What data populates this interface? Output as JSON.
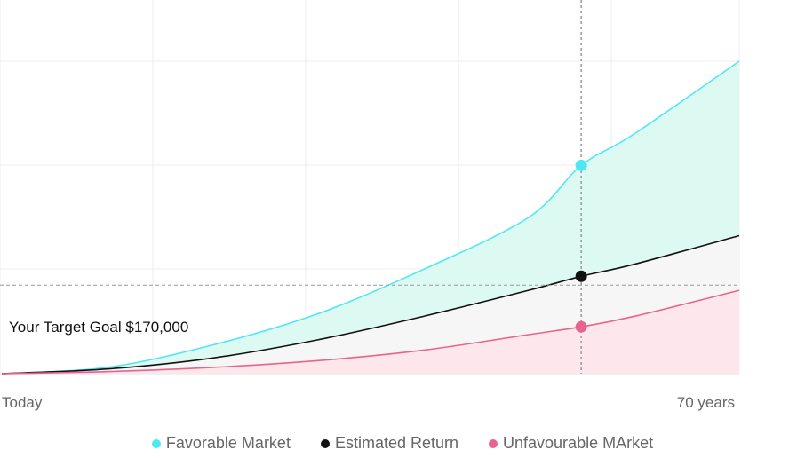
{
  "chart_data": {
    "type": "area",
    "x_start_label": "Today",
    "x_end_label": "70 years",
    "xlim": [
      0,
      70
    ],
    "ylim": [
      0,
      600000
    ],
    "target": {
      "label": "Your Target Goal $170,000",
      "value": 170000
    },
    "marker_x": 55,
    "grid": true,
    "legend_position": "bottom",
    "series": [
      {
        "key": "favorable",
        "name": "Favorable Market",
        "color": "#4ee8f5",
        "fill": "#dcfaf1",
        "x": [
          0,
          10,
          20,
          30,
          40,
          50,
          55,
          60,
          70
        ],
        "y": [
          0,
          12000,
          55000,
          115000,
          200000,
          300000,
          400000,
          460000,
          600000
        ]
      },
      {
        "key": "estimated",
        "name": "Estimated Return",
        "color": "#111111",
        "fill": "#f6f6f6",
        "x": [
          0,
          10,
          20,
          30,
          40,
          50,
          55,
          60,
          70
        ],
        "y": [
          0,
          9000,
          30000,
          65000,
          110000,
          160000,
          187000,
          210000,
          265000
        ]
      },
      {
        "key": "unfavorable",
        "name": "Unfavourable MArket",
        "color": "#e8648e",
        "fill": "#fde6ec",
        "x": [
          0,
          10,
          20,
          30,
          40,
          50,
          55,
          60,
          70
        ],
        "y": [
          0,
          4000,
          12000,
          25000,
          45000,
          75000,
          90000,
          110000,
          160000
        ]
      }
    ]
  }
}
